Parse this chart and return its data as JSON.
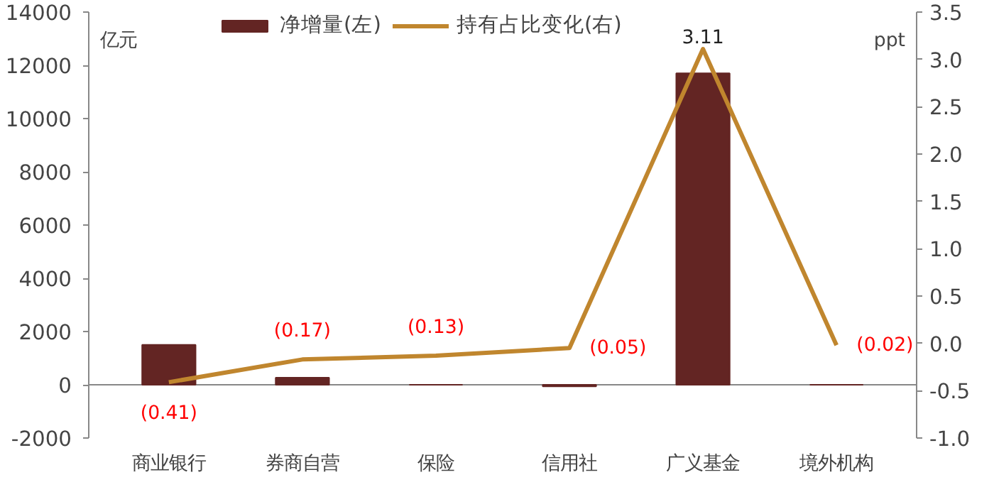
{
  "chart_data": {
    "type": "bar",
    "categories": [
      "商业银行",
      "券商自营",
      "保险",
      "信用社",
      "广义基金",
      "境外机构"
    ],
    "ylabel": "亿元",
    "y2label": "ppt",
    "ylim": [
      -2000,
      14000
    ],
    "yticks": [
      -2000,
      0,
      2000,
      4000,
      6000,
      8000,
      10000,
      12000,
      14000
    ],
    "y2lim": [
      -1.0,
      3.5
    ],
    "y2ticks": [
      {
        "value": -1.0,
        "label": "-1.0"
      },
      {
        "value": -0.5,
        "label": "-0.5"
      },
      {
        "value": 0,
        "label": "0.0"
      },
      {
        "value": 0.5,
        "label": "0.5"
      },
      {
        "value": 1.0,
        "label": "1.0"
      },
      {
        "value": 1.5,
        "label": "1.5"
      },
      {
        "value": 2.0,
        "label": "2.0"
      },
      {
        "value": 2.5,
        "label": "2.5"
      },
      {
        "value": 3.0,
        "label": "3.0"
      },
      {
        "value": 3.5,
        "label": "3.5"
      }
    ],
    "legend": "top",
    "series": [
      {
        "name": "净增量(左)",
        "type": "bar",
        "color": "#632523",
        "values": [
          1500,
          270,
          0,
          -60,
          11700,
          0
        ]
      },
      {
        "name": "持有占比变化(右)",
        "type": "line",
        "axis": "y2",
        "color": "#c0862e",
        "values": [
          -0.41,
          -0.17,
          -0.13,
          -0.05,
          3.11,
          -0.02
        ],
        "value_labels": [
          "(0.41)",
          "(0.17)",
          "(0.13)",
          "(0.05)",
          "3.11",
          "(0.02)"
        ]
      }
    ]
  }
}
